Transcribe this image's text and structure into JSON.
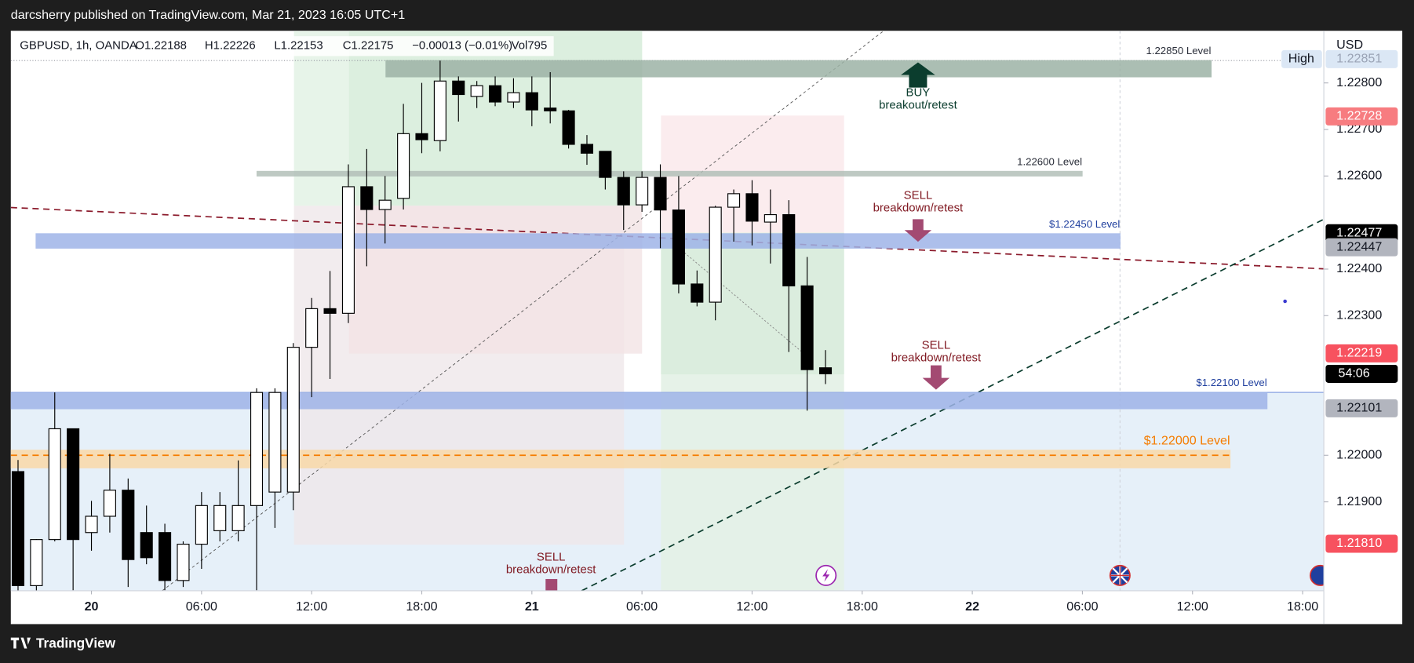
{
  "header": {
    "publisher": "darcsherry published on TradingView.com, Mar 21, 2023 16:05 UTC+1",
    "footer": "TradingView"
  },
  "chart_data": {
    "type": "candlestick",
    "symbol": "GBPUSD, 1h, OANDA",
    "legend": [
      "O1.22188",
      "H1.22226",
      "L1.22153",
      "C1.22175",
      "−0.00013 (−0.01%)",
      "Vol795"
    ],
    "currency": "USD",
    "up_color": "#ffffff",
    "down_color": "#000000",
    "ohlc": [
      [
        1.21965,
        1.2199,
        1.217,
        1.2172
      ],
      [
        1.2172,
        1.2182,
        1.217,
        1.21819
      ],
      [
        1.21819,
        1.22135,
        1.21815,
        1.22057
      ],
      [
        1.22057,
        1.22057,
        1.2171,
        1.21819
      ],
      [
        1.21834,
        1.21902,
        1.21795,
        1.21869
      ],
      [
        1.21869,
        1.22003,
        1.21834,
        1.21925
      ],
      [
        1.21925,
        1.2195,
        1.21717,
        1.21776
      ],
      [
        1.21834,
        1.21892,
        1.21766,
        1.2178
      ],
      [
        1.21834,
        1.21853,
        1.2171,
        1.21731
      ],
      [
        1.21731,
        1.21815,
        1.21717,
        1.21809
      ],
      [
        1.21809,
        1.21921,
        1.21756,
        1.21892
      ],
      [
        1.21838,
        1.21921,
        1.21815,
        1.21892
      ],
      [
        1.21838,
        1.21989,
        1.21815,
        1.21892
      ],
      [
        1.21892,
        1.22144,
        1.2171,
        1.22135
      ],
      [
        1.21921,
        1.22144,
        1.21844,
        1.22135
      ],
      [
        1.21921,
        1.22241,
        1.21882,
        1.22232
      ],
      [
        1.22232,
        1.22338,
        1.22125,
        1.22315
      ],
      [
        1.22315,
        1.22396,
        1.22164,
        1.22305
      ],
      [
        1.22305,
        1.22625,
        1.22284,
        1.22577
      ],
      [
        1.22577,
        1.22658,
        1.22406,
        1.22528
      ],
      [
        1.22528,
        1.226,
        1.22455,
        1.22548
      ],
      [
        1.22552,
        1.22755,
        1.22528,
        1.22691
      ],
      [
        1.22691,
        1.228,
        1.22649,
        1.22678
      ],
      [
        1.22676,
        1.22848,
        1.22653,
        1.22804
      ],
      [
        1.22804,
        1.22814,
        1.22717,
        1.22775
      ],
      [
        1.22771,
        1.22804,
        1.22746,
        1.22794
      ],
      [
        1.22794,
        1.22814,
        1.2275,
        1.22759
      ],
      [
        1.22759,
        1.2281,
        1.22746,
        1.22779
      ],
      [
        1.22779,
        1.22814,
        1.22707,
        1.22742
      ],
      [
        1.22746,
        1.22823,
        1.22713,
        1.2274
      ],
      [
        1.2274,
        1.22742,
        1.22659,
        1.22668
      ],
      [
        1.22668,
        1.22688,
        1.22624,
        1.22649
      ],
      [
        1.22653,
        1.22653,
        1.22571,
        1.22597
      ],
      [
        1.22597,
        1.2261,
        1.22484,
        1.22538
      ],
      [
        1.22538,
        1.2261,
        1.22523,
        1.22597
      ],
      [
        1.22597,
        1.22625,
        1.22445,
        1.22527
      ],
      [
        1.22527,
        1.226,
        1.22348,
        1.22368
      ],
      [
        1.22368,
        1.22397,
        1.2232,
        1.22329
      ],
      [
        1.22329,
        1.22536,
        1.2229,
        1.22533
      ],
      [
        1.22533,
        1.22571,
        1.22459,
        1.22562
      ],
      [
        1.22562,
        1.22591,
        1.22451,
        1.22503
      ],
      [
        1.22501,
        1.22571,
        1.22412,
        1.22517
      ],
      [
        1.22517,
        1.22548,
        1.22222,
        1.22364
      ],
      [
        1.22364,
        1.22426,
        1.22096,
        1.22184
      ],
      [
        1.22188,
        1.22226,
        1.22153,
        1.22175
      ]
    ],
    "xticks": [
      "20",
      "06:00",
      "12:00",
      "18:00",
      "21",
      "06:00",
      "12:00",
      "18:00",
      "22",
      "06:00",
      "12:00",
      "18:00"
    ],
    "ylim": [
      1.21709,
      1.22912
    ],
    "yticks": [
      {
        "value": 1.228,
        "label": "1.22800"
      },
      {
        "value": 1.227,
        "label": "1.22700"
      },
      {
        "value": 1.226,
        "label": "1.22600"
      },
      {
        "value": 1.224,
        "label": "1.22400"
      },
      {
        "value": 1.223,
        "label": "1.22300"
      },
      {
        "value": 1.22,
        "label": "1.22000"
      },
      {
        "value": 1.219,
        "label": "1.21900"
      }
    ],
    "zones": [
      {
        "label": "1.22850 Level",
        "top": 1.22848,
        "bottom": 1.22813,
        "color": "#9db3a6",
        "label_color": "#2a2e39"
      },
      {
        "label": "1.22600 Level",
        "top": 1.2261,
        "bottom": 1.226,
        "color": "#b3c0b9",
        "label_color": "#2a2e39"
      },
      {
        "label": "$1.22450 Level",
        "top": 1.22476,
        "bottom": 1.22445,
        "color": "#9fb4e8",
        "label_color": "#1f3f9e"
      },
      {
        "label": "$1.22100 Level",
        "top": 1.22135,
        "bottom": 1.221,
        "color": "#9fb4e8",
        "label_color": "#1f3f9e"
      },
      {
        "label": "$1.22000 Level",
        "top": 1.22011,
        "bottom": 1.21973,
        "line": 1.22,
        "color": "#f9d9a8",
        "label_color": "#f57c00"
      }
    ],
    "price_labels": [
      {
        "value": 1.22851,
        "label": "1.22851",
        "note": "High",
        "color": "#dbe7f5",
        "text_color": "#9aa3b5"
      },
      {
        "value": 1.22728,
        "label": "1.22728",
        "color": "#f77c80",
        "text_color": "#ffffff"
      },
      {
        "value": 1.22477,
        "label": "1.22477",
        "color": "#000000",
        "text_color": "#ffffff"
      },
      {
        "value": 1.22447,
        "label": "1.22447",
        "color": "#b2b5be",
        "text_color": "#131722"
      },
      {
        "value": 1.22219,
        "label": "1.22219",
        "color": "#f7525f",
        "text_color": "#ffffff"
      },
      {
        "value": 1.22101,
        "label": "1.22101",
        "color": "#b2b5be",
        "text_color": "#131722"
      },
      {
        "value": 1.2181,
        "label": "1.21810",
        "color": "#f7525f",
        "text_color": "#ffffff"
      }
    ],
    "countdown": {
      "label": "54:06",
      "color": "#000000",
      "text_color": "#ffffff"
    },
    "annotations": [
      {
        "title": "BUY",
        "text": "breakout/retest",
        "color": "#0b3d2e"
      },
      {
        "title": "SELL",
        "text": "breakdown/retest",
        "color": "#801922"
      },
      {
        "title": "SELL",
        "text": "breakdown/retest",
        "color": "#801922"
      },
      {
        "title": "SELL",
        "text": "breakdown/retest",
        "color": "#801922"
      }
    ]
  }
}
